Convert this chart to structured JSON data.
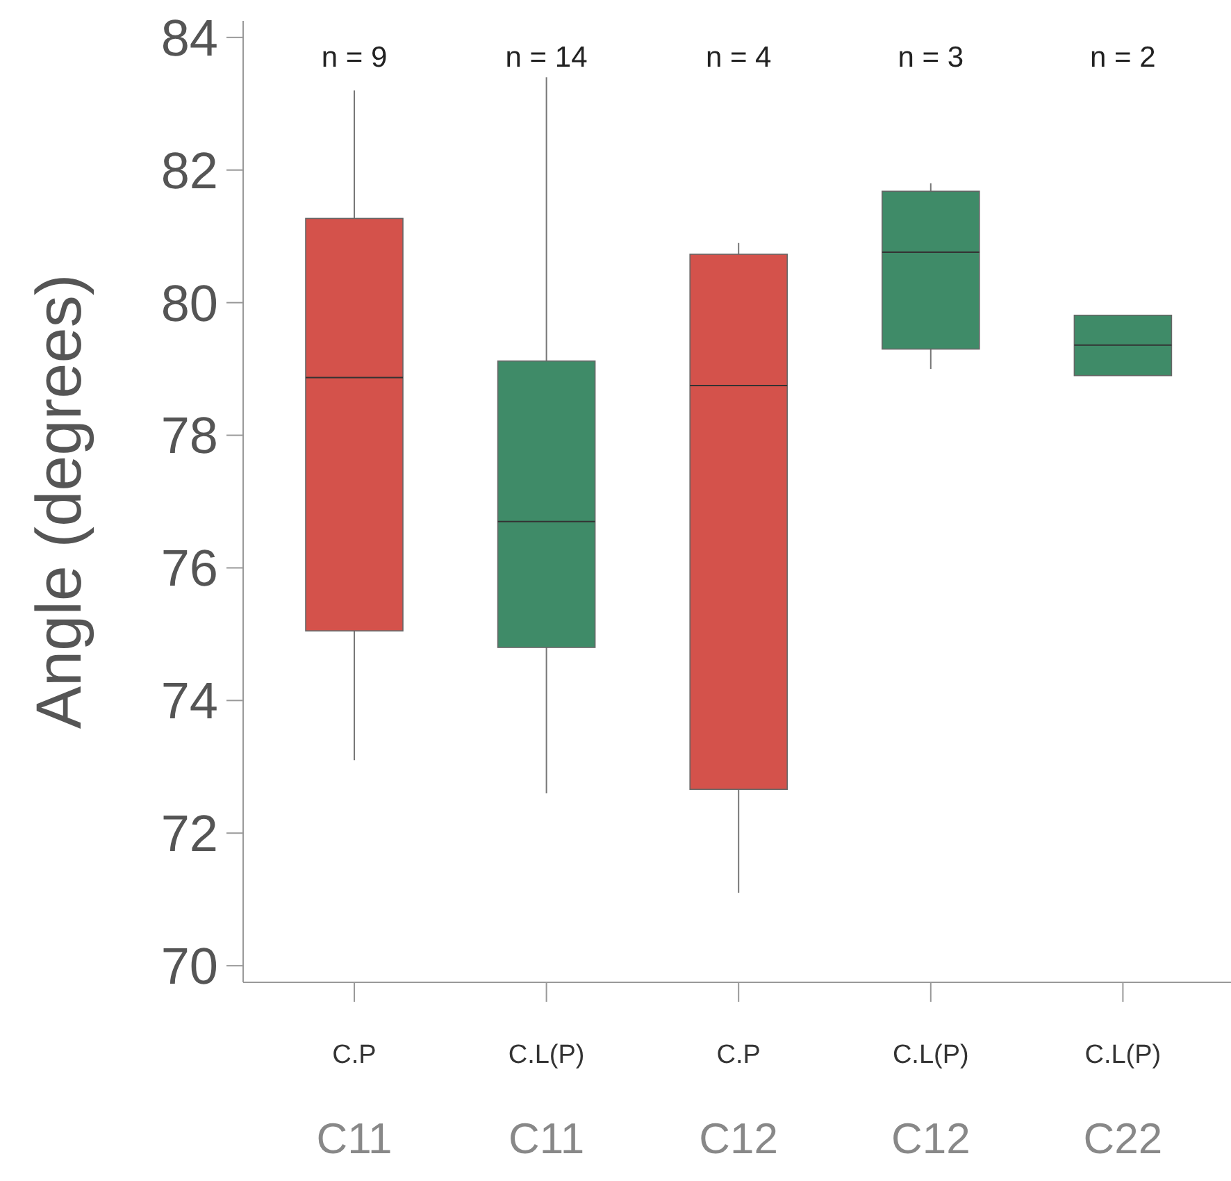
{
  "chart_data": {
    "type": "box",
    "ylabel": "Angle (degrees)",
    "categories": [
      "C.P\nC11",
      "C.L(P)\nC11",
      "C.P\nC12",
      "C.L(P)\nC12",
      "C.L(P)\nC22"
    ],
    "colors": [
      "#d4524b",
      "#3f8b68",
      "#d4524b",
      "#3f8b68",
      "#3f8b68"
    ],
    "boxes": [
      {
        "low": 73.1,
        "q1": 75.05,
        "median": 78.87,
        "q3": 81.27,
        "high": 83.2
      },
      {
        "low": 72.6,
        "q1": 74.8,
        "median": 76.7,
        "q3": 79.12,
        "high": 83.4
      },
      {
        "low": 71.1,
        "q1": 72.66,
        "median": 78.75,
        "q3": 80.73,
        "high": 80.9
      },
      {
        "low": 79.0,
        "q1": 79.3,
        "median": 80.76,
        "q3": 81.68,
        "high": 81.8
      },
      {
        "low": 78.9,
        "q1": 78.9,
        "median": 79.36,
        "q3": 79.81,
        "high": 79.81
      }
    ],
    "ylim": [
      69.75,
      84.25
    ],
    "yticks": [
      70,
      72,
      74,
      76,
      78,
      80,
      82,
      84
    ],
    "annotations": [
      "n = 9",
      "n = 14",
      "n = 4",
      "n = 3",
      "n = 2"
    ]
  }
}
